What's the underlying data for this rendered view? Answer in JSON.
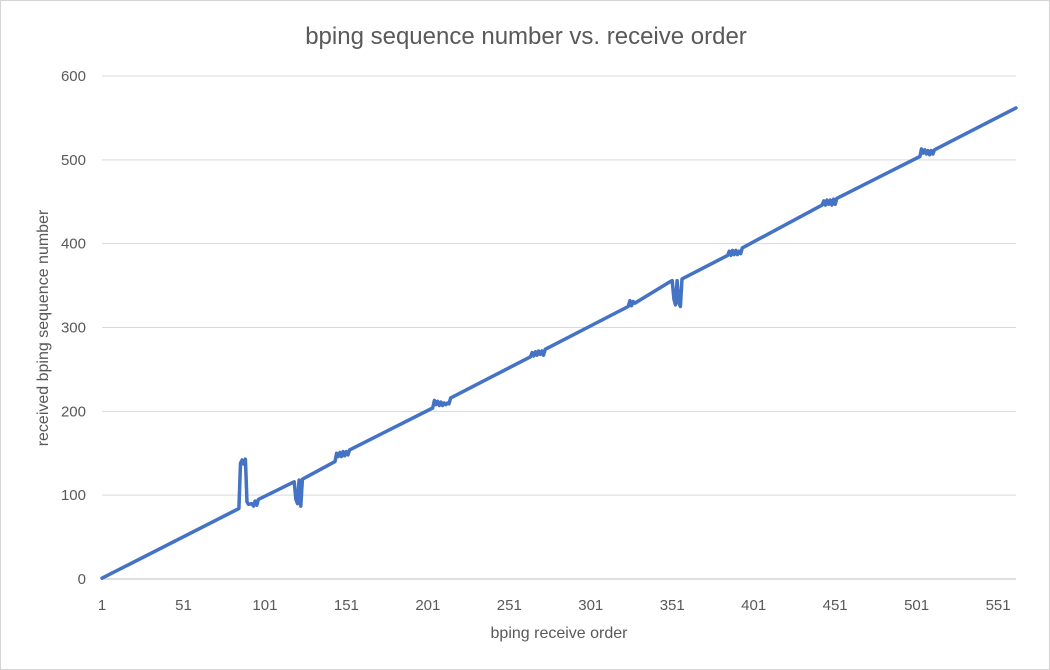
{
  "chart_data": {
    "type": "line",
    "title": "bping sequence number vs. receive order",
    "xlabel": "bping receive order",
    "ylabel": "received bping sequence number",
    "xlim": [
      1,
      562
    ],
    "ylim": [
      0,
      600
    ],
    "x_ticks": [
      "1",
      "51",
      "101",
      "151",
      "201",
      "251",
      "301",
      "351",
      "401",
      "451",
      "501",
      "551"
    ],
    "y_ticks": [
      "0",
      "100",
      "200",
      "300",
      "400",
      "500",
      "600"
    ],
    "grid": true,
    "legend": "none",
    "series": [
      {
        "color": "#4472c4",
        "points": [
          [
            1,
            1
          ],
          [
            84,
            83
          ],
          [
            85,
            84
          ],
          [
            86,
            138
          ],
          [
            87,
            142
          ],
          [
            88,
            137
          ],
          [
            89,
            143
          ],
          [
            90,
            92
          ],
          [
            91,
            89
          ],
          [
            93,
            90
          ],
          [
            94,
            87
          ],
          [
            95,
            93
          ],
          [
            96,
            88
          ],
          [
            97,
            95
          ],
          [
            118,
            115
          ],
          [
            119,
            116
          ],
          [
            120,
            95
          ],
          [
            121,
            90
          ],
          [
            122,
            118
          ],
          [
            123,
            87
          ],
          [
            124,
            119
          ],
          [
            144,
            140
          ],
          [
            145,
            150
          ],
          [
            146,
            146
          ],
          [
            147,
            151
          ],
          [
            148,
            146
          ],
          [
            149,
            152
          ],
          [
            150,
            147
          ],
          [
            151,
            152
          ],
          [
            152,
            148
          ],
          [
            153,
            154
          ],
          [
            204,
            204
          ],
          [
            205,
            213
          ],
          [
            206,
            208
          ],
          [
            207,
            212
          ],
          [
            208,
            207
          ],
          [
            209,
            211
          ],
          [
            210,
            207
          ],
          [
            211,
            210
          ],
          [
            212,
            208
          ],
          [
            213,
            210
          ],
          [
            214,
            209
          ],
          [
            215,
            216
          ],
          [
            264,
            265
          ],
          [
            265,
            270
          ],
          [
            266,
            266
          ],
          [
            267,
            271
          ],
          [
            268,
            267
          ],
          [
            269,
            272
          ],
          [
            270,
            268
          ],
          [
            271,
            272
          ],
          [
            272,
            267
          ],
          [
            273,
            274
          ],
          [
            324,
            325
          ],
          [
            325,
            332
          ],
          [
            326,
            326
          ],
          [
            327,
            331
          ],
          [
            328,
            329
          ],
          [
            350,
            355
          ],
          [
            351,
            356
          ],
          [
            352,
            334
          ],
          [
            353,
            327
          ],
          [
            354,
            356
          ],
          [
            355,
            330
          ],
          [
            356,
            325
          ],
          [
            357,
            358
          ],
          [
            385,
            386
          ],
          [
            386,
            391
          ],
          [
            387,
            386
          ],
          [
            388,
            392
          ],
          [
            389,
            387
          ],
          [
            390,
            392
          ],
          [
            391,
            387
          ],
          [
            392,
            391
          ],
          [
            393,
            388
          ],
          [
            394,
            395
          ],
          [
            443,
            446
          ],
          [
            444,
            451
          ],
          [
            445,
            446
          ],
          [
            446,
            452
          ],
          [
            447,
            447
          ],
          [
            448,
            452
          ],
          [
            449,
            446
          ],
          [
            450,
            453
          ],
          [
            451,
            447
          ],
          [
            452,
            454
          ],
          [
            503,
            504
          ],
          [
            504,
            513
          ],
          [
            505,
            508
          ],
          [
            506,
            512
          ],
          [
            507,
            507
          ],
          [
            508,
            511
          ],
          [
            509,
            506
          ],
          [
            510,
            511
          ],
          [
            511,
            507
          ],
          [
            512,
            512
          ],
          [
            513,
            513
          ],
          [
            562,
            562
          ]
        ]
      }
    ]
  }
}
